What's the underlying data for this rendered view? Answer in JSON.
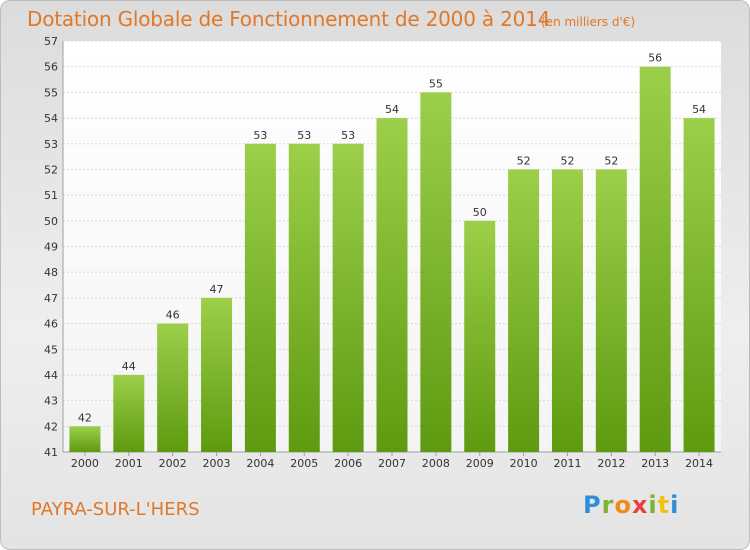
{
  "header": {
    "title": "Dotation Globale de Fonctionnement de 2000 à 2014",
    "unit": "(en milliers d'€)"
  },
  "footer": {
    "commune": "PAYRA-SUR-L'HERS",
    "logo_text": "Proxiti"
  },
  "colors": {
    "accent": "#e07828",
    "bar_top": "#9ccf4a",
    "bar_bottom": "#5e9a10"
  },
  "chart_data": {
    "type": "bar",
    "title": "Dotation Globale de Fonctionnement de 2000 à 2014",
    "xlabel": "",
    "ylabel": "",
    "categories": [
      "2000",
      "2001",
      "2002",
      "2003",
      "2004",
      "2005",
      "2006",
      "2007",
      "2008",
      "2009",
      "2010",
      "2011",
      "2012",
      "2013",
      "2014"
    ],
    "values": [
      42,
      44,
      46,
      47,
      53,
      53,
      53,
      54,
      55,
      50,
      52,
      52,
      52,
      56,
      54
    ],
    "ylim": [
      41,
      57
    ],
    "yticks": [
      41,
      42,
      43,
      44,
      45,
      46,
      47,
      48,
      49,
      50,
      51,
      52,
      53,
      54,
      55,
      56,
      57
    ],
    "grid": true,
    "data_labels": true
  }
}
